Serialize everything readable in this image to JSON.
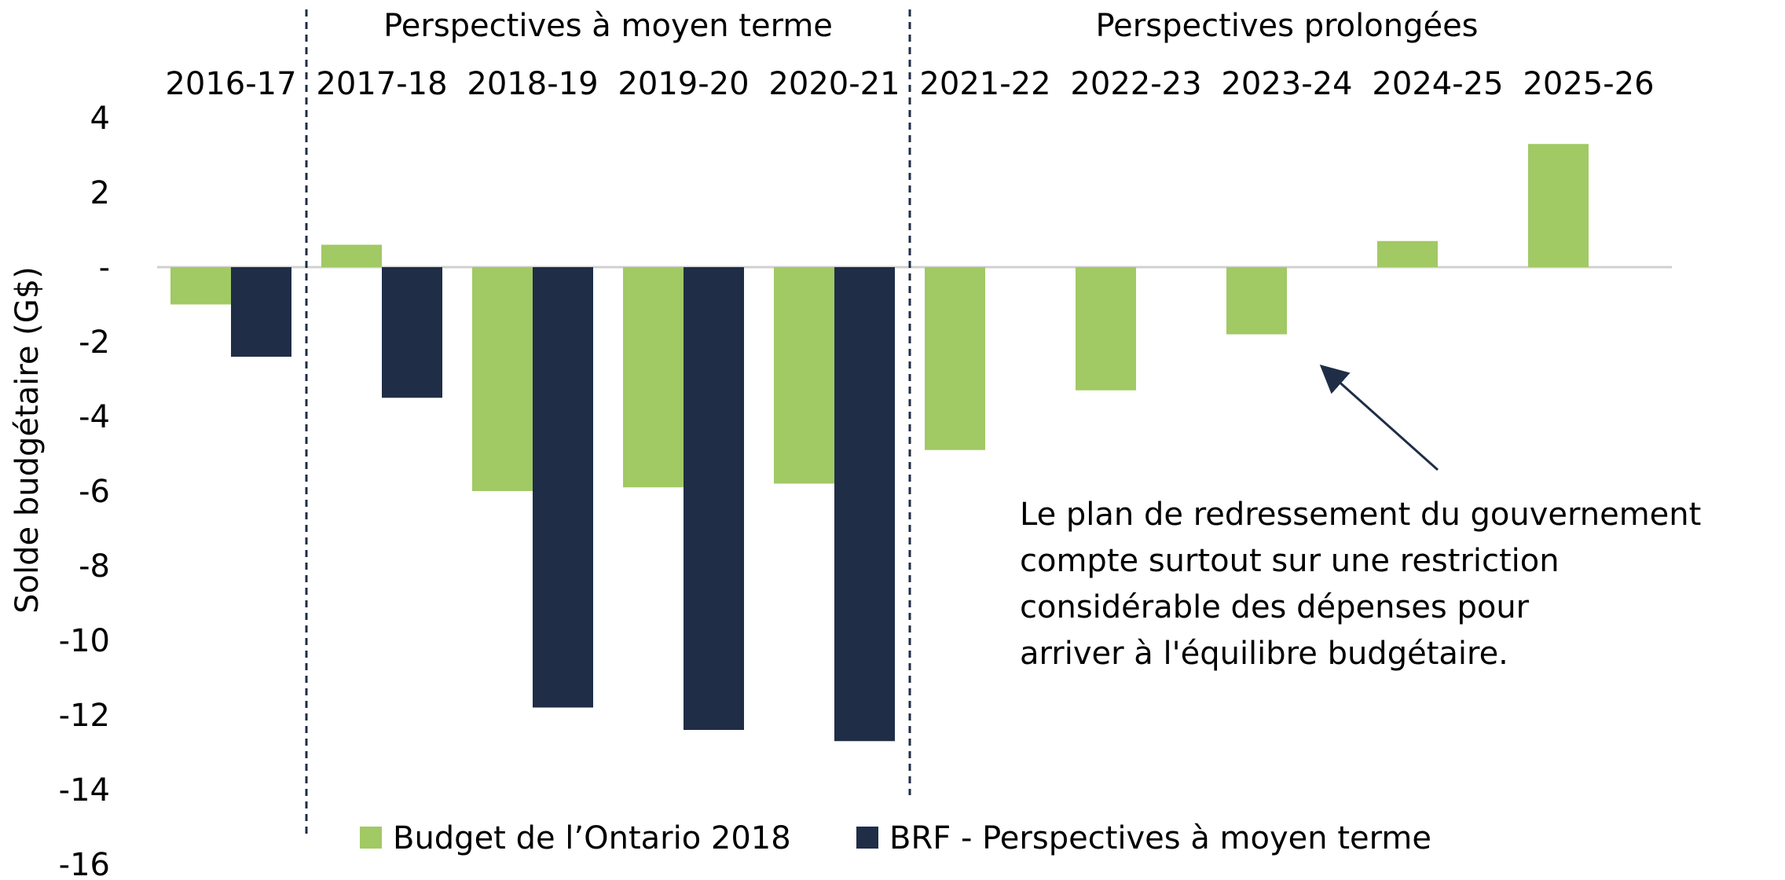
{
  "chart_data": {
    "type": "bar",
    "title": "",
    "xlabel": "",
    "ylabel": "Solde budgétaire (G$)",
    "ylim": [
      -16,
      4
    ],
    "yticks": [
      4,
      2,
      0,
      -2,
      -4,
      -6,
      -8,
      -10,
      -12,
      -14,
      -16
    ],
    "ytick_labels": [
      "4",
      "2",
      "-",
      "-2",
      "-4",
      "-6",
      "-8",
      "-10",
      "-12",
      "-14",
      "-16"
    ],
    "categories": [
      "2016-17",
      "2017-18",
      "2018-19",
      "2019-20",
      "2020-21",
      "2021-22",
      "2022-23",
      "2023-24",
      "2024-25",
      "2025-26"
    ],
    "series": [
      {
        "name": "Budget de l’Ontario 2018",
        "color": "#a1c964",
        "values": [
          -1.0,
          0.6,
          -6.0,
          -5.9,
          -5.8,
          -4.9,
          -3.3,
          -1.8,
          0.7,
          3.3
        ]
      },
      {
        "name": "BRF - Perspectives à moyen terme",
        "color": "#1f2d47",
        "values": [
          -2.4,
          -3.5,
          -11.8,
          -12.4,
          -12.7,
          null,
          null,
          null,
          null,
          null
        ]
      }
    ],
    "period_labels": [
      {
        "text": "Perspectives à moyen terme",
        "from": "2017-18",
        "to": "2020-21"
      },
      {
        "text": "Perspectives prolongées",
        "from": "2021-22",
        "to": "2025-26"
      }
    ],
    "annotation": {
      "lines": [
        "Le plan de redressement du gouvernement",
        "compte surtout sur une restriction",
        "considérable des dépenses pour",
        "arriver à l'équilibre budgétaire."
      ],
      "points_to": "2023-24"
    },
    "legend_position": "bottom",
    "grid": false
  }
}
